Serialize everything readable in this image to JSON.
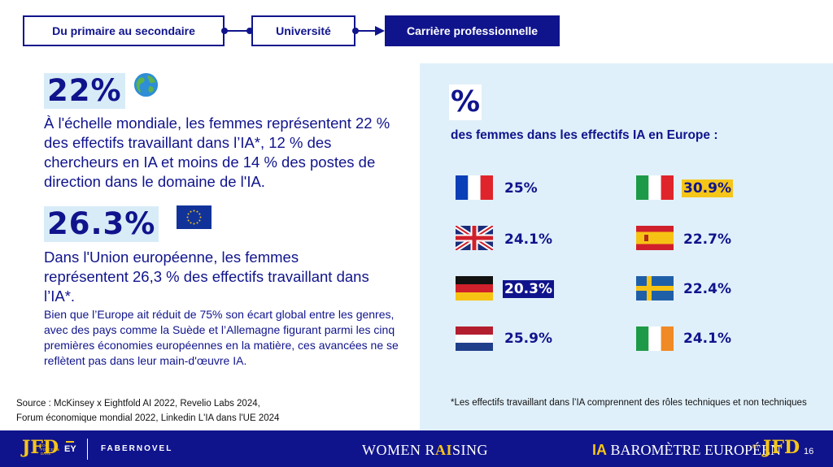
{
  "breadcrumb": {
    "steps": [
      "Du primaire au secondaire",
      "Université",
      "Carrière professionnelle"
    ],
    "active_index": 2
  },
  "left": {
    "stat1": {
      "value": "22%",
      "icon": "globe-icon",
      "text": "À l'échelle mondiale, les femmes représentent 22 % des effectifs travaillant dans l’IA*, 12 % des chercheurs en IA et moins de 14 % des postes de direction dans le domaine de l'IA."
    },
    "stat2": {
      "value": "26.3%",
      "icon": "eu-flag-icon",
      "text": "Dans l'Union européenne, les femmes représentent 26,3 % des effectifs travaillant dans l’IA*."
    },
    "paragraph": "Bien que l’Europe ait réduit de 75% son écart global entre les genres, avec des pays comme la Suède et l’Allemagne figurant parmi les cinq premières économies européennes en la matière, ces avancées ne se reflètent pas dans leur main-d'œuvre IA.",
    "source_line1": "Source : McKinsey x Eightfold AI 2022, Revelio Labs 2024,",
    "source_line2": "Forum économique mondial 2022, Linkedin L'IA dans l'UE 2024"
  },
  "panel": {
    "symbol": "%",
    "subtitle": "des femmes dans les effectifs IA en Europe :",
    "countries": [
      {
        "flag": "france-flag-icon",
        "value": "25%",
        "highlight": "none"
      },
      {
        "flag": "italy-flag-icon",
        "value": "30.9%",
        "highlight": "yellow"
      },
      {
        "flag": "uk-flag-icon",
        "value": "24.1%",
        "highlight": "none"
      },
      {
        "flag": "spain-flag-icon",
        "value": "22.7%",
        "highlight": "none"
      },
      {
        "flag": "germany-flag-icon",
        "value": "20.3%",
        "highlight": "blue"
      },
      {
        "flag": "sweden-flag-icon",
        "value": "22.4%",
        "highlight": "none"
      },
      {
        "flag": "netherlands-flag-icon",
        "value": "25.9%",
        "highlight": "none"
      },
      {
        "flag": "ireland-flag-icon",
        "value": "24.1%",
        "highlight": "none"
      }
    ],
    "note": "*Les effectifs travaillant dans l’IA comprennent  des rôles techniques et non techniques"
  },
  "footer": {
    "logo_jfd": "JFD",
    "jfd_small": "JOIN FORCES & DARE",
    "ey": "EY",
    "fabernovel": "FABERNOVEL",
    "women_raising_pre": "WOMEN R",
    "women_raising_ai": "AI",
    "women_raising_post": "SING",
    "baro_ia": "IA",
    "baro_text": " BAROMÈTRE EUROPÉEN",
    "by": "BY",
    "page_number": "16"
  },
  "colors": {
    "navy": "#10148c",
    "yellow": "#f5c518",
    "panel_bg": "#e0f0fa",
    "highlight_bg": "#d8ecf8"
  }
}
